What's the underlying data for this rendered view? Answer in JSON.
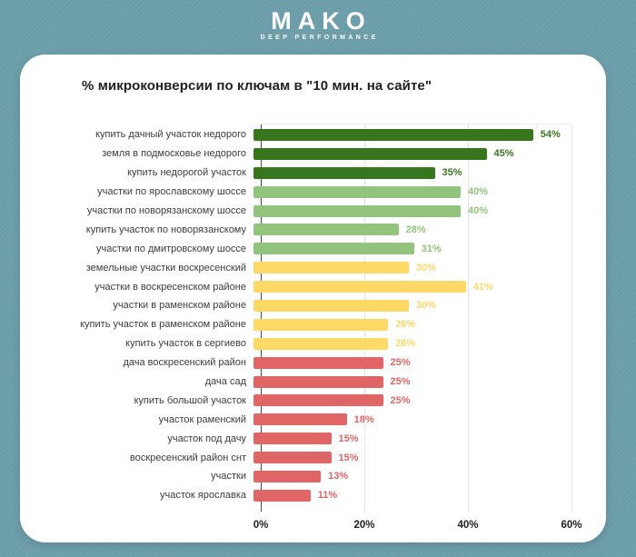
{
  "logo": {
    "brand": "MAKO",
    "tagline": "DEEP PERFORMANCE"
  },
  "theme": {
    "background": "#6d9fab",
    "card": "#ffffff",
    "gridline": "#e3e3e3",
    "dark_green": "#38761d",
    "light_green": "#93c47d",
    "yellow": "#ffd966",
    "red": "#e06666"
  },
  "chart_data": {
    "type": "bar",
    "orientation": "horizontal",
    "title": "% микроконверсии по ключам в \"10 мин. на сайте\"",
    "categories": [
      "купить дачный участок недорого",
      "земля в подмосковье недорого",
      "купить недорогой участок",
      "участки по ярославскому шоссе",
      "участки по новорязанскому шоссе",
      "купить участок по новорязанскому",
      "участки по дмитровскому шоссе",
      "земельные участки воскресенский",
      "участки в воскресенском районе",
      "участки в раменском районе",
      "купить участок в раменском районе",
      "купить участок в сергиево",
      "дача воскресенский район",
      "дача сад",
      "купить большой участок",
      "участок раменский",
      "участок под дачу",
      "воскресенский район снт",
      "участки",
      "участок ярославка"
    ],
    "values": [
      54,
      45,
      35,
      40,
      40,
      28,
      31,
      30,
      41,
      30,
      26,
      26,
      25,
      25,
      25,
      18,
      15,
      15,
      13,
      11
    ],
    "value_labels": [
      "54%",
      "45%",
      "35%",
      "40%",
      "40%",
      "28%",
      "31%",
      "30%",
      "41%",
      "30%",
      "26%",
      "26%",
      "25%",
      "25%",
      "25%",
      "18%",
      "15%",
      "15%",
      "13%",
      "11%"
    ],
    "bar_colors": [
      "#38761d",
      "#38761d",
      "#38761d",
      "#93c47d",
      "#93c47d",
      "#93c47d",
      "#93c47d",
      "#ffd966",
      "#ffd966",
      "#ffd966",
      "#ffd966",
      "#ffd966",
      "#e06666",
      "#e06666",
      "#e06666",
      "#e06666",
      "#e06666",
      "#e06666",
      "#e06666",
      "#e06666"
    ],
    "x_ticks": [
      "0%",
      "20%",
      "40%",
      "60%"
    ],
    "x_tick_values": [
      0,
      20,
      40,
      60
    ],
    "xlim": [
      0,
      60
    ],
    "grid": true,
    "legend": "none",
    "xlabel": "",
    "ylabel": ""
  }
}
